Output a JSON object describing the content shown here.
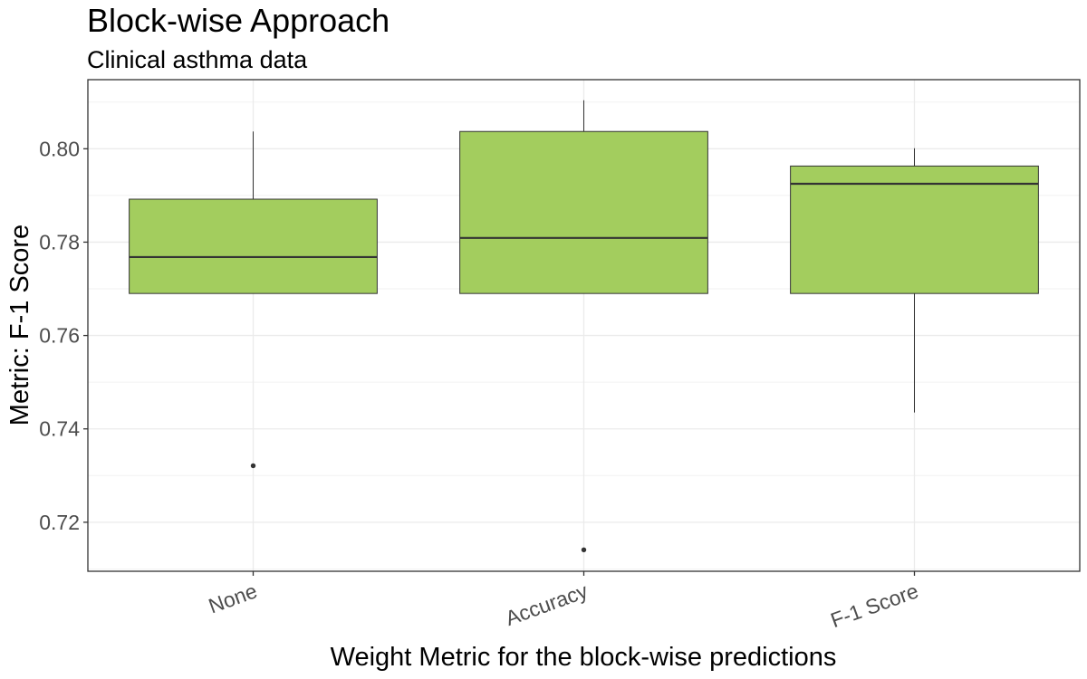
{
  "chart_data": {
    "type": "box",
    "title": "Block-wise Approach",
    "subtitle": "Clinical asthma data",
    "xlabel": "Weight Metric for the block-wise predictions",
    "ylabel": "Metric: F-1 Score",
    "categories": [
      "None",
      "Accuracy",
      "F-1 Score"
    ],
    "boxes": [
      {
        "category": "None",
        "lower_whisker": 0.769,
        "q1": 0.769,
        "median": 0.7768,
        "q3": 0.7892,
        "upper_whisker": 0.8037,
        "outliers": [
          0.7321
        ]
      },
      {
        "category": "Accuracy",
        "lower_whisker": 0.769,
        "q1": 0.769,
        "median": 0.7809,
        "q3": 0.8037,
        "upper_whisker": 0.8104,
        "outliers": [
          0.7141
        ]
      },
      {
        "category": "F-1 Score",
        "lower_whisker": 0.7435,
        "q1": 0.769,
        "median": 0.7925,
        "q3": 0.7963,
        "upper_whisker": 0.8001,
        "outliers": []
      }
    ],
    "yticks": [
      0.72,
      0.74,
      0.76,
      0.78,
      0.8
    ],
    "ytick_labels": [
      "0.72",
      "0.74",
      "0.76",
      "0.78",
      "0.80"
    ],
    "ylim": [
      0.7095,
      0.8148
    ],
    "box_fill": "#a3cd5e",
    "grid": true,
    "x_tick_rotation_deg": 20
  }
}
